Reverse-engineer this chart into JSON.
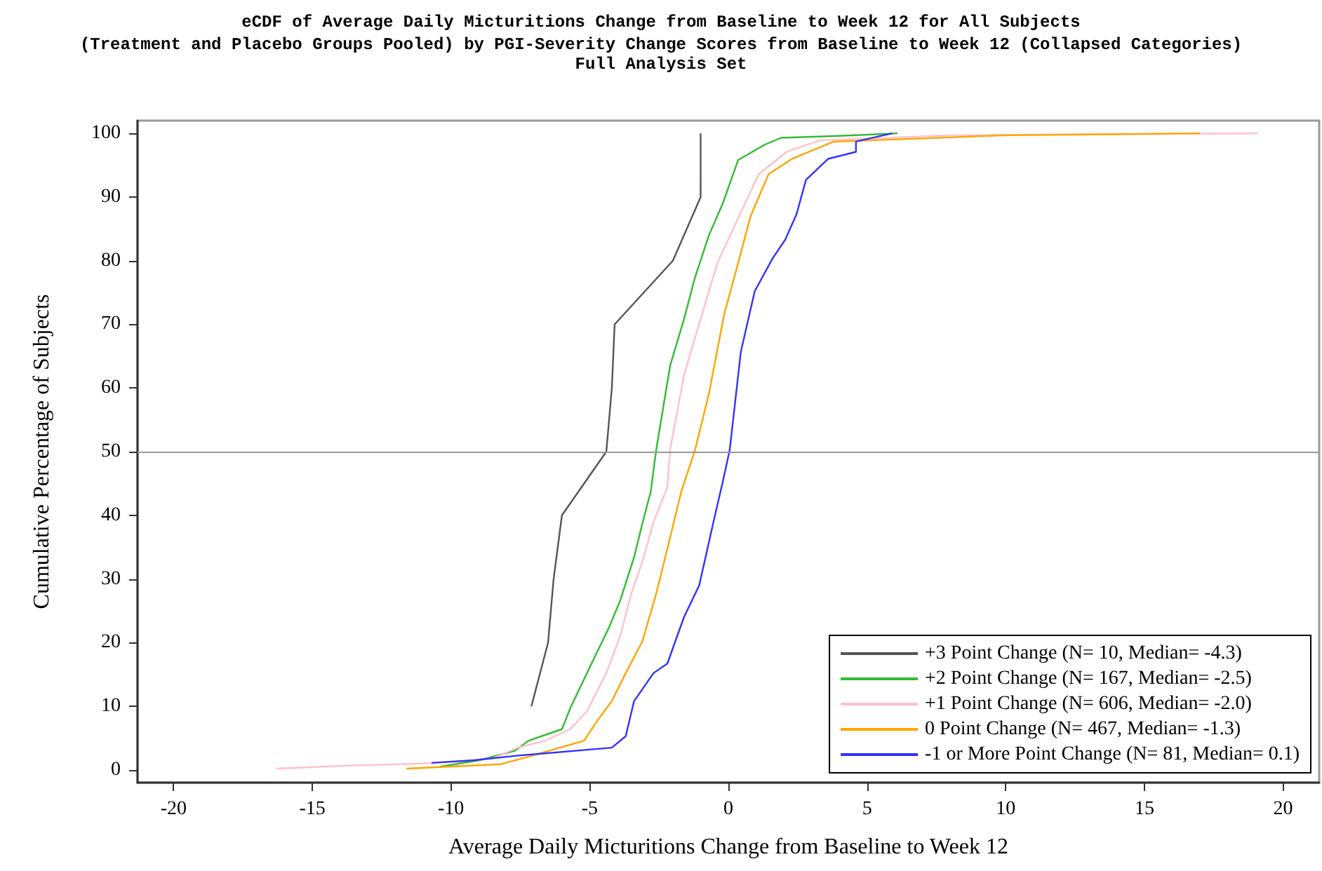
{
  "chart_data": {
    "type": "line",
    "title": "eCDF of Average Daily Micturitions Change from Baseline to Week 12 for All Subjects",
    "subtitle": "(Treatment and Placebo Groups Pooled) by PGI-Severity Change Scores from Baseline to Week 12 (Collapsed Categories)\nFull Analysis Set",
    "xlabel": "Average Daily Micturitions Change from Baseline to Week 12",
    "ylabel": "Cumulative Percentage of Subjects",
    "xlim": [
      -21.3,
      21.3
    ],
    "xticks": [
      -20,
      -15,
      -10,
      -5,
      0,
      5,
      10,
      15,
      20
    ],
    "ylim": [
      -2,
      102
    ],
    "yticks": [
      0,
      10,
      20,
      30,
      40,
      50,
      60,
      70,
      80,
      90,
      100
    ],
    "legend": "bottom right",
    "grid": false,
    "marker": "none",
    "line_style": "solid",
    "ref_lines": [
      {
        "axis": "y",
        "value": 50,
        "color": "#999999"
      }
    ],
    "series": [
      {
        "name": "+3 Point Change (N= 10, Median= -4.3)",
        "color": "#555555",
        "x": [
          -7.1,
          -6.5,
          -6.3,
          -6.0,
          -4.4,
          -4.2,
          -4.1,
          -2.0,
          -1.0,
          -1.0
        ],
        "values": [
          10,
          20,
          30,
          40,
          50,
          60,
          70,
          80,
          90,
          100
        ]
      },
      {
        "name": "+2 Point Change (N= 167, Median= -2.5)",
        "color": "#33bb33",
        "x": [
          -10.4,
          -9.0,
          -7.7,
          -7.2,
          -6.0,
          -5.7,
          -4.9,
          -4.3,
          -3.9,
          -3.4,
          -3.1,
          -2.8,
          -2.6,
          -2.1,
          -1.6,
          -1.2,
          -0.7,
          -0.2,
          0.35,
          1.3,
          1.9,
          4.0,
          6.1
        ],
        "values": [
          0.5,
          1.5,
          3,
          4.6,
          6.4,
          9.7,
          17,
          22.4,
          26.6,
          33.4,
          38.7,
          43.7,
          50.3,
          63.5,
          70.8,
          77.4,
          84,
          89,
          95.8,
          98.2,
          99.3,
          99.6,
          100
        ]
      },
      {
        "name": "+1 Point Change (N= 606, Median= -2.0)",
        "color": "#ffc0cb",
        "x": [
          -16.3,
          -13.5,
          -11.0,
          -8.5,
          -7.6,
          -6.6,
          -5.7,
          -5.1,
          -4.4,
          -3.9,
          -3.5,
          -3.1,
          -2.7,
          -2.2,
          -2.1,
          -1.6,
          -0.9,
          -0.4,
          0.3,
          1.1,
          2.1,
          3.3,
          8.0,
          19.1
        ],
        "values": [
          0.2,
          0.7,
          1.0,
          1.8,
          3.5,
          4.6,
          6.4,
          9.2,
          15.2,
          21,
          27.7,
          32.7,
          38.9,
          44.4,
          50.3,
          62,
          72.3,
          79.6,
          86.2,
          93.6,
          97.1,
          98.9,
          99.7,
          100
        ]
      },
      {
        "name": "0 Point Change (N= 467, Median= -1.3)",
        "color": "#ffa500",
        "x": [
          -11.6,
          -8.2,
          -7.1,
          -5.2,
          -4.7,
          -4.2,
          -3.7,
          -3.1,
          -2.6,
          -2.1,
          -1.7,
          -1.2,
          -0.7,
          -0.15,
          0.35,
          0.8,
          1.45,
          2.3,
          3.8,
          10.0,
          17.0
        ],
        "values": [
          0.2,
          0.9,
          2.2,
          4.6,
          7.9,
          10.8,
          15.2,
          20.2,
          27.7,
          36.5,
          43.7,
          50.3,
          59.1,
          71.6,
          79.6,
          87,
          93.6,
          96,
          98.7,
          99.7,
          100
        ]
      },
      {
        "name": "-1 or More Point Change (N= 81, Median= 0.1)",
        "color": "#3333ff",
        "x": [
          -10.7,
          -9.2,
          -7.7,
          -4.2,
          -3.7,
          -3.4,
          -2.7,
          -2.2,
          -1.6,
          -1.05,
          -0.55,
          -0.2,
          0.05,
          0.45,
          0.95,
          1.6,
          2.05,
          2.45,
          2.8,
          3.6,
          4.6,
          4.6,
          5.9
        ],
        "values": [
          1.1,
          1.5,
          2.2,
          3.5,
          5.3,
          10.8,
          15.2,
          16.7,
          24,
          29,
          38.7,
          45.3,
          50.3,
          65.7,
          75.2,
          80.4,
          83.3,
          87.2,
          92.7,
          96,
          97.1,
          98.7,
          100
        ]
      }
    ]
  }
}
